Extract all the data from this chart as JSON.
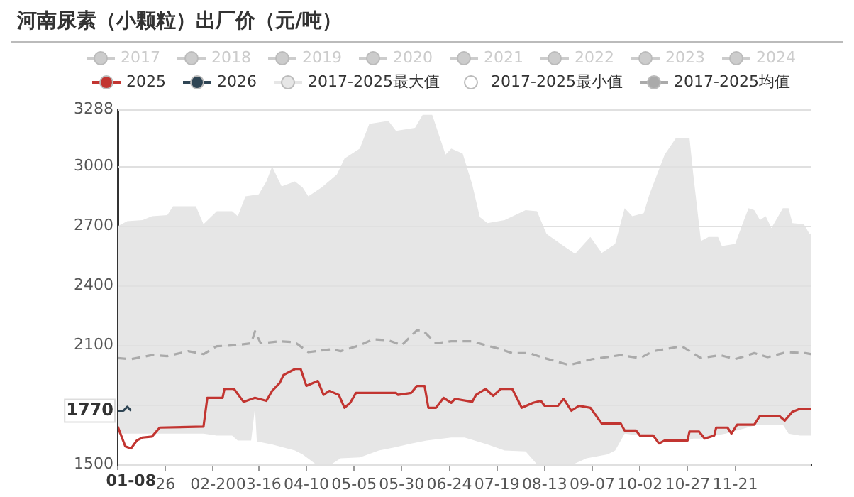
{
  "chart_data": {
    "type": "line",
    "title": "河南尿素（小颗粒）出厂价（元/吨）",
    "xlim": [
      "--01-01",
      "--12-31"
    ],
    "xticks": [
      {
        "value": "--01-01",
        "label": null
      },
      {
        "value": "--01-26",
        "label": "26"
      },
      {
        "value": "--02-20",
        "label": "02-20"
      },
      {
        "value": "--03-16",
        "label": "03-16"
      },
      {
        "value": "--04-10",
        "label": "04-10"
      },
      {
        "value": "--05-05",
        "label": "05-05"
      },
      {
        "value": "--05-30",
        "label": "05-30"
      },
      {
        "value": "--06-24",
        "label": "06-24"
      },
      {
        "value": "--07-19",
        "label": "07-19"
      },
      {
        "value": "--08-13",
        "label": "08-13"
      },
      {
        "value": "--09-07",
        "label": "09-07"
      },
      {
        "value": "--10-02",
        "label": "10-02"
      },
      {
        "value": "--10-27",
        "label": "10-27"
      },
      {
        "value": "--11-21",
        "label": "11-21"
      }
    ],
    "ylim": [
      1500,
      3288
    ],
    "yticks": [
      1500,
      {
        "value": 1800,
        "label": null
      },
      2100,
      2400,
      2700,
      3000,
      3288
    ],
    "grid": "y",
    "legend": "top",
    "marker": "none",
    "annotations": [
      "01-08",
      "1770"
    ],
    "series": [
      {
        "name": "2017",
        "color": "#cccccc"
      },
      {
        "name": "2018",
        "color": "#cccccc"
      },
      {
        "name": "2019",
        "color": "#cccccc"
      },
      {
        "name": "2020",
        "color": "#cccccc"
      },
      {
        "name": "2021",
        "color": "#cccccc"
      },
      {
        "name": "2022",
        "color": "#cccccc"
      },
      {
        "name": "2023",
        "color": "#cccccc"
      },
      {
        "name": "2024",
        "color": "#cccccc"
      },
      {
        "name": "2025",
        "color": "#c23531",
        "x": [
          "--01-01",
          "--01-03",
          "--01-05",
          "--01-08",
          "--01-11",
          "--01-14",
          "--01-19",
          "--01-23",
          "--02-15",
          "--02-17",
          "--02-25",
          "--02-26",
          "--03-03",
          "--03-08",
          "--03-14",
          "--03-20",
          "--03-23",
          "--03-27",
          "--03-29",
          "--04-04",
          "--04-07",
          "--04-10",
          "--04-16",
          "--04-19",
          "--04-22",
          "--04-27",
          "--04-30",
          "--05-03",
          "--05-06",
          "--05-27",
          "--05-28",
          "--06-04",
          "--06-07",
          "--06-11",
          "--06-13",
          "--06-17",
          "--06-21",
          "--06-25",
          "--06-27",
          "--07-06",
          "--07-08",
          "--07-13",
          "--07-17",
          "--07-21",
          "--07-27",
          "--08-01",
          "--08-07",
          "--08-11",
          "--08-13",
          "--08-20",
          "--08-23",
          "--08-27",
          "--08-31",
          "--09-06",
          "--09-12",
          "--09-22",
          "--09-24",
          "--09-30",
          "--10-02",
          "--10-09",
          "--10-12",
          "--10-15",
          "--10-27",
          "--10-28",
          "--11-02",
          "--11-05",
          "--11-10",
          "--11-11",
          "--11-17",
          "--11-19",
          "--11-22",
          "--12-01",
          "--12-04",
          "--12-14",
          "--12-17",
          "--12-21",
          "--12-25",
          "--12-31"
        ],
        "values": [
          1690,
          1640,
          1590,
          1580,
          1620,
          1635,
          1640,
          1685,
          1690,
          1835,
          1835,
          1880,
          1880,
          1815,
          1835,
          1820,
          1870,
          1910,
          1950,
          1980,
          1980,
          1895,
          1920,
          1850,
          1870,
          1850,
          1785,
          1810,
          1860,
          1860,
          1850,
          1860,
          1895,
          1895,
          1785,
          1785,
          1835,
          1810,
          1830,
          1815,
          1850,
          1880,
          1845,
          1880,
          1880,
          1785,
          1810,
          1820,
          1795,
          1795,
          1830,
          1770,
          1795,
          1785,
          1705,
          1705,
          1670,
          1670,
          1645,
          1645,
          1605,
          1620,
          1620,
          1665,
          1665,
          1630,
          1645,
          1685,
          1685,
          1655,
          1700,
          1700,
          1745,
          1745,
          1720,
          1765,
          1780,
          1780
        ]
      },
      {
        "name": "2026",
        "color": "#2f4554",
        "x": [
          "--01-01",
          "--01-04",
          "--01-06",
          "--01-08"
        ],
        "values": [
          1770,
          1770,
          1790,
          1770
        ]
      },
      {
        "name": "2017-2025最大值",
        "type": "area",
        "color": "#e6e6e6",
        "x": [
          "--01-01",
          "--01-06",
          "--01-14",
          "--01-19",
          "--01-27",
          "--01-30",
          "--02-11",
          "--02-15",
          "--02-22",
          "--03-02",
          "--03-05",
          "--03-09",
          "--03-16",
          "--03-20",
          "--03-23",
          "--03-28",
          "--04-04",
          "--04-08",
          "--04-11",
          "--04-18",
          "--04-26",
          "--04-30",
          "--05-08",
          "--05-13",
          "--05-23",
          "--05-27",
          "--06-06",
          "--06-10",
          "--06-15",
          "--06-22",
          "--06-25",
          "--07-01",
          "--07-06",
          "--07-10",
          "--07-14",
          "--07-23",
          "--08-03",
          "--08-09",
          "--08-14",
          "--08-23",
          "--08-29",
          "--09-06",
          "--09-12",
          "--09-19",
          "--09-24",
          "--09-28",
          "--10-04",
          "--10-07",
          "--10-15",
          "--10-21",
          "--10-28",
          "--10-30",
          "--11-03",
          "--11-07",
          "--11-12",
          "--11-14",
          "--11-21",
          "--11-25",
          "--11-28",
          "--12-01",
          "--12-04",
          "--12-07",
          "--12-10",
          "--12-16",
          "--12-19",
          "--12-21",
          "--12-27",
          "--12-30",
          "--12-31"
        ],
        "values": [
          2700,
          2725,
          2730,
          2750,
          2755,
          2800,
          2800,
          2710,
          2775,
          2775,
          2750,
          2850,
          2860,
          2925,
          3000,
          2900,
          2925,
          2895,
          2850,
          2895,
          2960,
          3040,
          3090,
          3215,
          3230,
          3180,
          3195,
          3260,
          3260,
          3060,
          3090,
          3065,
          2910,
          2745,
          2715,
          2730,
          2780,
          2775,
          2660,
          2600,
          2560,
          2645,
          2565,
          2610,
          2790,
          2750,
          2765,
          2860,
          3060,
          3145,
          3145,
          2960,
          2625,
          2645,
          2645,
          2600,
          2610,
          2715,
          2790,
          2780,
          2730,
          2750,
          2690,
          2790,
          2790,
          2715,
          2710,
          2660,
          2665
        ]
      },
      {
        "name": "2017-2025最小值",
        "type": "area",
        "color": "#ffffff",
        "x": [
          "--01-01",
          "--02-15",
          "--02-22",
          "--03-02",
          "--03-05",
          "--03-12",
          "--03-14",
          "--03-15",
          "--03-23",
          "--03-29",
          "--04-04",
          "--04-08",
          "--04-15",
          "--04-23",
          "--04-28",
          "--05-08",
          "--05-18",
          "--05-26",
          "--06-04",
          "--06-12",
          "--06-25",
          "--07-02",
          "--07-14",
          "--07-23",
          "--08-03",
          "--08-09",
          "--08-28",
          "--09-04",
          "--09-15",
          "--09-19",
          "--09-24",
          "--10-02",
          "--10-09",
          "--10-12",
          "--10-15",
          "--10-27",
          "--10-30",
          "--11-05",
          "--11-10",
          "--11-16",
          "--12-03",
          "--12-16",
          "--12-19",
          "--12-25",
          "--12-31"
        ],
        "values": [
          1655,
          1655,
          1645,
          1645,
          1620,
          1620,
          1785,
          1615,
          1600,
          1585,
          1570,
          1550,
          1500,
          1500,
          1530,
          1535,
          1570,
          1585,
          1605,
          1620,
          1635,
          1635,
          1600,
          1570,
          1565,
          1500,
          1500,
          1530,
          1550,
          1570,
          1655,
          1645,
          1635,
          1605,
          1620,
          1620,
          1630,
          1630,
          1645,
          1655,
          1700,
          1700,
          1655,
          1645,
          1645
        ]
      },
      {
        "name": "2017-2025均值",
        "color": "#aaaaaa",
        "line_style": "dashed",
        "x": [
          "--01-01",
          "--01-08",
          "--01-19",
          "--01-27",
          "--02-07",
          "--02-15",
          "--02-22",
          "--03-04",
          "--03-12",
          "--03-14",
          "--03-17",
          "--03-27",
          "--04-04",
          "--04-11",
          "--04-23",
          "--04-28",
          "--05-08",
          "--05-15",
          "--05-23",
          "--05-30",
          "--06-07",
          "--06-10",
          "--06-17",
          "--06-25",
          "--07-06",
          "--07-13",
          "--07-19",
          "--07-27",
          "--08-05",
          "--08-13",
          "--08-26",
          "--09-07",
          "--09-22",
          "--10-02",
          "--10-09",
          "--10-24",
          "--11-03",
          "--11-13",
          "--11-21",
          "--12-01",
          "--12-08",
          "--12-18",
          "--12-28",
          "--12-31"
        ],
        "values": [
          2035,
          2030,
          2050,
          2045,
          2070,
          2055,
          2095,
          2100,
          2110,
          2170,
          2110,
          2120,
          2115,
          2065,
          2080,
          2070,
          2100,
          2130,
          2125,
          2100,
          2175,
          2175,
          2110,
          2120,
          2120,
          2100,
          2085,
          2060,
          2060,
          2035,
          2000,
          2030,
          2050,
          2035,
          2070,
          2095,
          2035,
          2050,
          2030,
          2060,
          2040,
          2065,
          2060,
          2055
        ]
      }
    ]
  }
}
